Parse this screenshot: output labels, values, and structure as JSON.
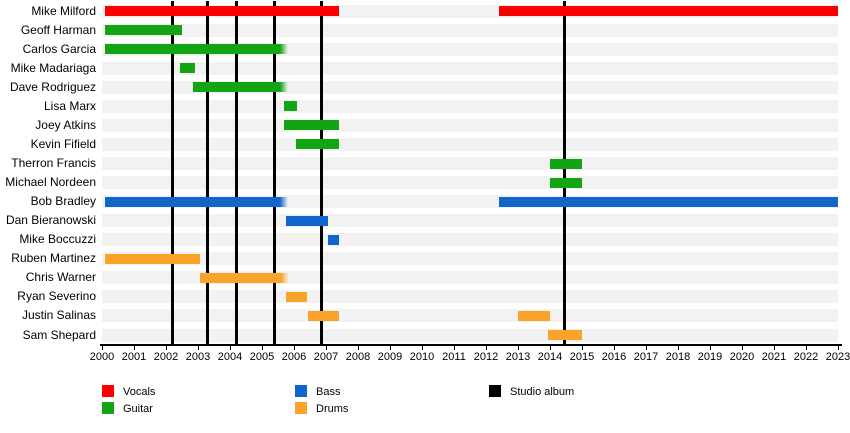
{
  "page": {
    "background": "#ffffff"
  },
  "chart_data": {
    "type": "bar",
    "variant": "band-member-timeline-gantt",
    "title": "",
    "xlabel": "",
    "ylabel": "",
    "x_axis": {
      "min": 2000,
      "max": 2023,
      "ticks": [
        2000,
        2001,
        2002,
        2003,
        2004,
        2005,
        2006,
        2007,
        2008,
        2009,
        2010,
        2011,
        2012,
        2013,
        2014,
        2015,
        2016,
        2017,
        2018,
        2019,
        2020,
        2021,
        2022,
        2023
      ]
    },
    "colors": {
      "vocals": "#fa0000",
      "guitar": "#12a412",
      "bass": "#1166cc",
      "drums": "#faa22a",
      "album": "#000000",
      "row_stripe": "#f2f2f2",
      "axis": "#000000"
    },
    "albums_x": [
      2002.2,
      2003.3,
      2004.2,
      2005.4,
      2006.85,
      2014.45
    ],
    "legend": [
      {
        "label": "Vocals",
        "role": "vocals"
      },
      {
        "label": "Guitar",
        "role": "guitar"
      },
      {
        "label": "Bass",
        "role": "bass"
      },
      {
        "label": "Drums",
        "role": "drums"
      },
      {
        "label": "Studio album",
        "role": "album"
      }
    ],
    "members": [
      {
        "name": "Mike Milford",
        "role": "vocals",
        "intervals": [
          {
            "start": 2000.1,
            "end": 2007.4
          },
          {
            "start": 2012.4,
            "end": 2023.0
          }
        ]
      },
      {
        "name": "Geoff Harman",
        "role": "guitar",
        "intervals": [
          {
            "start": 2000.1,
            "end": 2002.5
          }
        ]
      },
      {
        "name": "Carlos Garcia",
        "role": "guitar",
        "intervals": [
          {
            "start": 2000.1,
            "end": 2005.8,
            "fade_end": true
          }
        ]
      },
      {
        "name": "Mike Madariaga",
        "role": "guitar",
        "intervals": [
          {
            "start": 2002.45,
            "end": 2002.9
          }
        ]
      },
      {
        "name": "Dave Rodriguez",
        "role": "guitar",
        "intervals": [
          {
            "start": 2002.85,
            "end": 2005.8,
            "fade_end": true
          }
        ]
      },
      {
        "name": "Lisa Marx",
        "role": "guitar",
        "intervals": [
          {
            "start": 2005.7,
            "end": 2006.1
          }
        ]
      },
      {
        "name": "Joey Atkins",
        "role": "guitar",
        "intervals": [
          {
            "start": 2005.7,
            "end": 2007.4
          }
        ]
      },
      {
        "name": "Kevin Fifield",
        "role": "guitar",
        "intervals": [
          {
            "start": 2006.05,
            "end": 2007.4
          }
        ]
      },
      {
        "name": "Therron Francis",
        "role": "guitar",
        "intervals": [
          {
            "start": 2014.0,
            "end": 2015.0
          }
        ]
      },
      {
        "name": "Michael Nordeen",
        "role": "guitar",
        "intervals": [
          {
            "start": 2014.0,
            "end": 2015.0
          }
        ]
      },
      {
        "name": "Bob Bradley",
        "role": "bass",
        "intervals": [
          {
            "start": 2000.1,
            "end": 2005.8,
            "fade_end": true
          },
          {
            "start": 2012.4,
            "end": 2023.0
          }
        ]
      },
      {
        "name": "Dan Bieranowski",
        "role": "bass",
        "intervals": [
          {
            "start": 2005.75,
            "end": 2007.05
          }
        ]
      },
      {
        "name": "Mike Boccuzzi",
        "role": "bass",
        "intervals": [
          {
            "start": 2007.05,
            "end": 2007.4
          }
        ]
      },
      {
        "name": "Ruben Martinez",
        "role": "drums",
        "intervals": [
          {
            "start": 2000.1,
            "end": 2003.05
          }
        ]
      },
      {
        "name": "Chris Warner",
        "role": "drums",
        "intervals": [
          {
            "start": 2003.05,
            "end": 2005.85,
            "fade_end": true
          }
        ]
      },
      {
        "name": "Ryan Severino",
        "role": "drums",
        "intervals": [
          {
            "start": 2005.75,
            "end": 2006.4
          }
        ]
      },
      {
        "name": "Justin Salinas",
        "role": "drums",
        "intervals": [
          {
            "start": 2006.45,
            "end": 2007.4
          },
          {
            "start": 2013.0,
            "end": 2014.0
          }
        ]
      },
      {
        "name": "Sam Shepard",
        "role": "drums",
        "intervals": [
          {
            "start": 2013.95,
            "end": 2015.0
          }
        ]
      }
    ]
  }
}
